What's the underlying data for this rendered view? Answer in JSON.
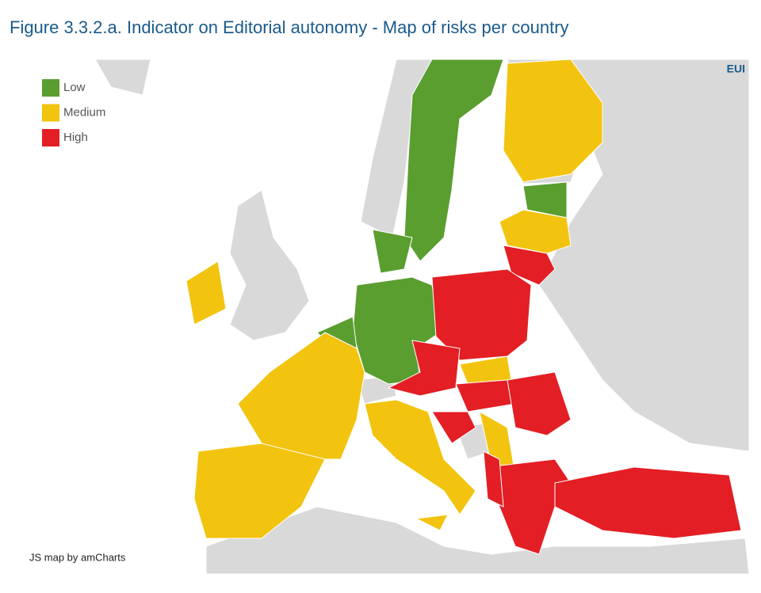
{
  "header": {
    "title": "Figure 3.3.2.a. Indicator on Editorial autonomy - Map of risks per country"
  },
  "legend": {
    "items": [
      {
        "label": "Low",
        "color": "#5a9e2f"
      },
      {
        "label": "Medium",
        "color": "#f2c40f"
      },
      {
        "label": "High",
        "color": "#e31e24"
      }
    ]
  },
  "logo": "EUI",
  "credit": "JS map by amCharts"
}
